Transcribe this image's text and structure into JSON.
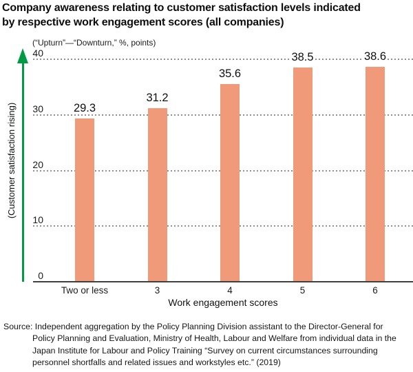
{
  "header": {
    "title_line1": "Company awareness relating to customer satisfaction levels indicated",
    "title_line2": "by respective work engagement scores (all companies)"
  },
  "chart_data": {
    "type": "bar",
    "title": "Company awareness relating to customer satisfaction levels indicated by respective work engagement scores (all companies)",
    "subtitle": "(“Upturn”—“Downturn,” %, points)",
    "categories": [
      "Two or less",
      "3",
      "4",
      "5",
      "6"
    ],
    "values": [
      29.3,
      31.2,
      35.6,
      38.5,
      38.6
    ],
    "xlabel": "Work engagement scores",
    "ylabel": "(Customer satisfaction rising)",
    "ylim": [
      0,
      40
    ],
    "yticks": [
      0,
      10,
      20,
      30,
      40
    ],
    "grid": "horizontal-dotted",
    "legend": "none",
    "bar_color": "#F19A79",
    "axis_arrow_color": "#009A44",
    "gridline_color": "#8F8F8F"
  },
  "source": {
    "lines": [
      "Source: Independent aggregation by the Policy Planning Division assistant to the Director-General for",
      "Policy Planning and Evaluation, Ministry of Health, Labour and Welfare from individual data in the",
      "Japan Institute for Labour and Policy Training “Survey on current circumstances surrounding",
      "personnel shortfalls and related issues and workstyles etc.” (2019)"
    ]
  }
}
